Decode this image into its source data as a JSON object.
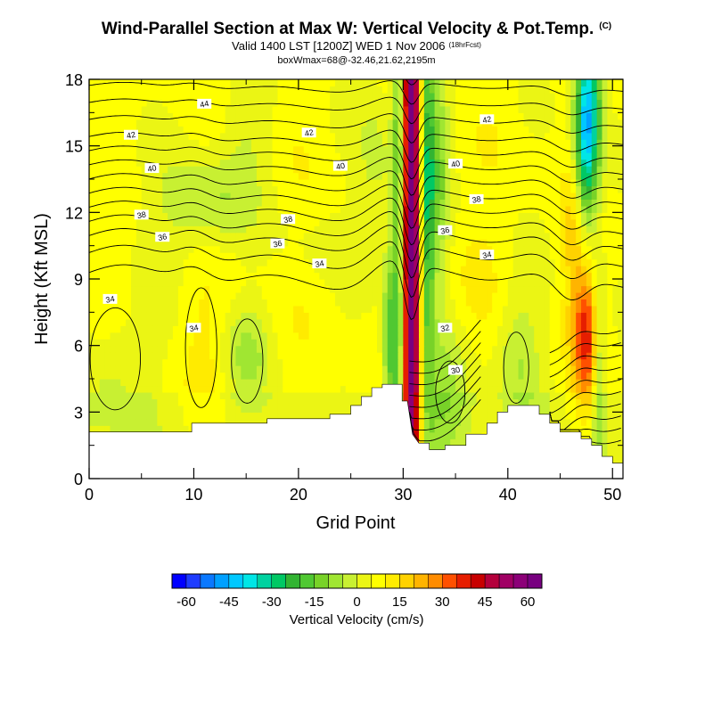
{
  "titles": {
    "main": "Wind-Parallel Section at Max W: Vertical Velocity & Pot.Temp.",
    "main_mark": "(C)",
    "valid": "Valid 1400 LST [1200Z] WED 1 Nov 2006",
    "fcst": "(18hrFcst)",
    "box": "boxWmax=68@-32.46,21.62,2195m"
  },
  "chart_data": {
    "type": "heatmap",
    "xlabel": "Grid Point",
    "ylabel": "Height (Kft MSL)",
    "xlim": [
      0,
      51
    ],
    "ylim": [
      0,
      18
    ],
    "x_ticks": [
      0,
      10,
      20,
      30,
      40,
      50
    ],
    "y_ticks": [
      0,
      3,
      6,
      9,
      12,
      15,
      18
    ],
    "colorbar": {
      "label": "Vertical Velocity (cm/s)",
      "ticks": [
        -60,
        -45,
        -30,
        -15,
        0,
        15,
        30,
        45,
        60
      ],
      "range": [
        -65,
        65
      ],
      "step": 5,
      "colors": [
        "#0000ff",
        "#1e3cff",
        "#0a78ff",
        "#00a0ff",
        "#00c8ff",
        "#00e6e6",
        "#00d2a0",
        "#00c864",
        "#32b432",
        "#50c832",
        "#78d228",
        "#a0e632",
        "#c8f032",
        "#ebf514",
        "#ffff00",
        "#ffeb00",
        "#ffd200",
        "#ffb400",
        "#ff8c00",
        "#ff5000",
        "#e61e00",
        "#c80000",
        "#b4003c",
        "#a00064",
        "#8c0078",
        "#780080"
      ]
    },
    "terrain_kft": [
      [
        0,
        2.1
      ],
      [
        9.8,
        2.1
      ],
      [
        9.8,
        2.5
      ],
      [
        17,
        2.5
      ],
      [
        17,
        2.7
      ],
      [
        23,
        2.7
      ],
      [
        23,
        2.9
      ],
      [
        25,
        2.9
      ],
      [
        25,
        3.3
      ],
      [
        26,
        3.3
      ],
      [
        26,
        3.7
      ],
      [
        27,
        3.7
      ],
      [
        27,
        4.1
      ],
      [
        28,
        4.1
      ],
      [
        28,
        4.25
      ],
      [
        29.9,
        4.25
      ],
      [
        29.9,
        3.5
      ],
      [
        30.4,
        3.5
      ],
      [
        30.9,
        2.0
      ],
      [
        31.5,
        1.6
      ],
      [
        32.5,
        1.6
      ],
      [
        32.5,
        1.3
      ],
      [
        34,
        1.3
      ],
      [
        34,
        1.5
      ],
      [
        36,
        1.5
      ],
      [
        36,
        2.0
      ],
      [
        38,
        2.0
      ],
      [
        38,
        2.5
      ],
      [
        39,
        2.5
      ],
      [
        39,
        3.0
      ],
      [
        40,
        3.0
      ],
      [
        40,
        3.3
      ],
      [
        43,
        3.3
      ],
      [
        43,
        2.9
      ],
      [
        44,
        2.9
      ],
      [
        44,
        2.5
      ],
      [
        45,
        2.5
      ],
      [
        45,
        2.1
      ],
      [
        47,
        2.1
      ],
      [
        47,
        1.8
      ],
      [
        48,
        1.8
      ],
      [
        48,
        1.5
      ],
      [
        49,
        1.5
      ],
      [
        49,
        1.0
      ],
      [
        50,
        1.0
      ],
      [
        50,
        0.7
      ],
      [
        51,
        0.7
      ]
    ],
    "w_features": [
      {
        "x": 30.6,
        "y": 10,
        "sx": 0.55,
        "sy": 30,
        "amp": 58
      },
      {
        "x": 31.4,
        "y": 10,
        "sx": 0.4,
        "sy": 30,
        "amp": 18
      },
      {
        "x": 29.7,
        "y": 9,
        "sx": 0.5,
        "sy": 30,
        "amp": -28
      },
      {
        "x": 32.3,
        "y": 13,
        "sx": 0.5,
        "sy": 6,
        "amp": -32
      },
      {
        "x": 33.5,
        "y": 14,
        "sx": 0.7,
        "sy": 4,
        "amp": -15
      },
      {
        "x": 47.4,
        "y": 15,
        "sx": 0.75,
        "sy": 3.5,
        "amp": -38
      },
      {
        "x": 48.0,
        "y": 17,
        "sx": 0.9,
        "sy": 2.5,
        "amp": -24
      },
      {
        "x": 47.5,
        "y": 6.5,
        "sx": 0.9,
        "sy": 2.2,
        "amp": 30
      },
      {
        "x": 46.6,
        "y": 11,
        "sx": 0.9,
        "sy": 2.5,
        "amp": 14
      },
      {
        "x": 48.7,
        "y": 5,
        "sx": 0.45,
        "sy": 3.5,
        "amp": -20
      },
      {
        "x": 15,
        "y": 5.5,
        "sx": 1.6,
        "sy": 1.6,
        "amp": -12
      },
      {
        "x": 11,
        "y": 6,
        "sx": 1.5,
        "sy": 2.2,
        "amp": 4
      },
      {
        "x": 2.5,
        "y": 4.5,
        "sx": 2.5,
        "sy": 2.0,
        "amp": -9
      },
      {
        "x": 12,
        "y": 12.5,
        "sx": 2.5,
        "sy": 1.5,
        "amp": -10
      },
      {
        "x": 15,
        "y": 16,
        "sx": 1.8,
        "sy": 2.2,
        "amp": -6
      },
      {
        "x": 27.5,
        "y": 14,
        "sx": 1.5,
        "sy": 3,
        "amp": -8
      },
      {
        "x": 34,
        "y": 3.5,
        "sx": 2.0,
        "sy": 2.0,
        "amp": -14
      },
      {
        "x": 41,
        "y": 5.5,
        "sx": 1.6,
        "sy": 2.2,
        "amp": -11
      },
      {
        "x": 37,
        "y": 9,
        "sx": 1.5,
        "sy": 2.5,
        "amp": 3
      },
      {
        "x": 8,
        "y": 12,
        "sx": 3,
        "sy": 2,
        "amp": -5
      },
      {
        "x": 22,
        "y": 10.5,
        "sx": 3,
        "sy": 1.2,
        "amp": -3
      },
      {
        "x": 28.7,
        "y": 6,
        "sx": 0.5,
        "sy": 3,
        "amp": -22
      }
    ],
    "theta_contour_labels": [
      {
        "text": "44",
        "x": 11,
        "y": 16.9
      },
      {
        "text": "42",
        "x": 4,
        "y": 15.5
      },
      {
        "text": "42",
        "x": 21,
        "y": 15.6
      },
      {
        "text": "42",
        "x": 38,
        "y": 16.2
      },
      {
        "text": "40",
        "x": 6,
        "y": 14.0
      },
      {
        "text": "40",
        "x": 24,
        "y": 14.1
      },
      {
        "text": "40",
        "x": 35,
        "y": 14.2
      },
      {
        "text": "38",
        "x": 37,
        "y": 12.6
      },
      {
        "text": "38",
        "x": 5,
        "y": 11.9
      },
      {
        "text": "38",
        "x": 19,
        "y": 11.7
      },
      {
        "text": "36",
        "x": 7,
        "y": 10.9
      },
      {
        "text": "36",
        "x": 18,
        "y": 10.6
      },
      {
        "text": "36",
        "x": 34,
        "y": 11.2
      },
      {
        "text": "34",
        "x": 22,
        "y": 9.7
      },
      {
        "text": "34",
        "x": 38,
        "y": 10.1
      },
      {
        "text": "34",
        "x": 2,
        "y": 8.1
      },
      {
        "text": "34",
        "x": 10,
        "y": 6.8
      },
      {
        "text": "32",
        "x": 34,
        "y": 6.8
      },
      {
        "text": "30",
        "x": 35,
        "y": 4.9
      }
    ],
    "theta_base_levels": [
      34.5,
      35.2,
      35.8,
      36.3,
      36.8,
      37.3,
      37.8,
      38.3,
      38.8,
      39.3,
      39.9,
      40.5,
      41.1,
      41.7,
      42.3,
      42.9,
      43.5,
      44.1,
      44.7
    ]
  }
}
